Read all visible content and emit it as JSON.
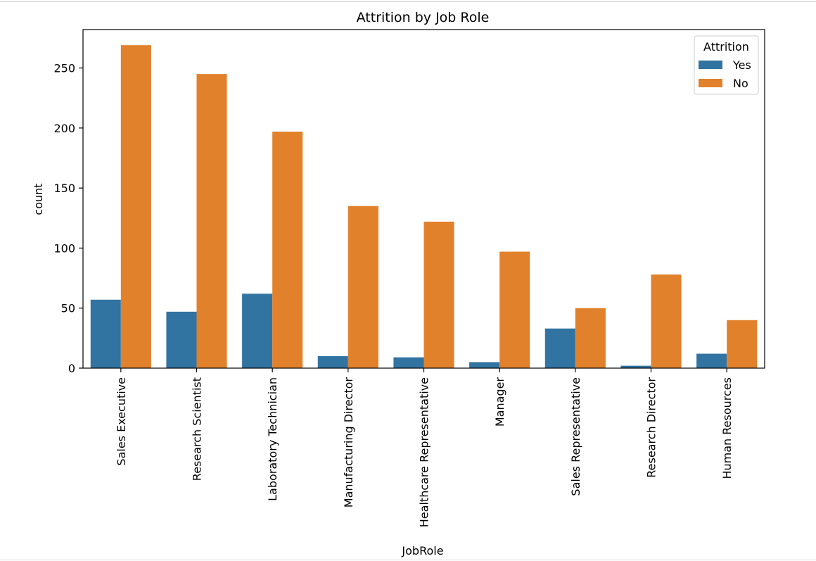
{
  "chart_data": {
    "type": "bar",
    "title": "Attrition by Job Role",
    "xlabel": "JobRole",
    "ylabel": "count",
    "ylim": [
      0,
      282
    ],
    "yticks": [
      0,
      50,
      100,
      150,
      200,
      250
    ],
    "categories": [
      "Sales Executive",
      "Research Scientist",
      "Laboratory Technician",
      "Manufacturing Director",
      "Healthcare Representative",
      "Manager",
      "Sales Representative",
      "Research Director",
      "Human Resources"
    ],
    "series": [
      {
        "name": "Yes",
        "color": "#3274a1",
        "values": [
          57,
          47,
          62,
          10,
          9,
          5,
          33,
          2,
          12
        ]
      },
      {
        "name": "No",
        "color": "#e1812c",
        "values": [
          269,
          245,
          197,
          135,
          122,
          97,
          50,
          78,
          40
        ]
      }
    ],
    "legend": {
      "title": "Attrition",
      "placement": "top-right"
    },
    "grid": false
  }
}
